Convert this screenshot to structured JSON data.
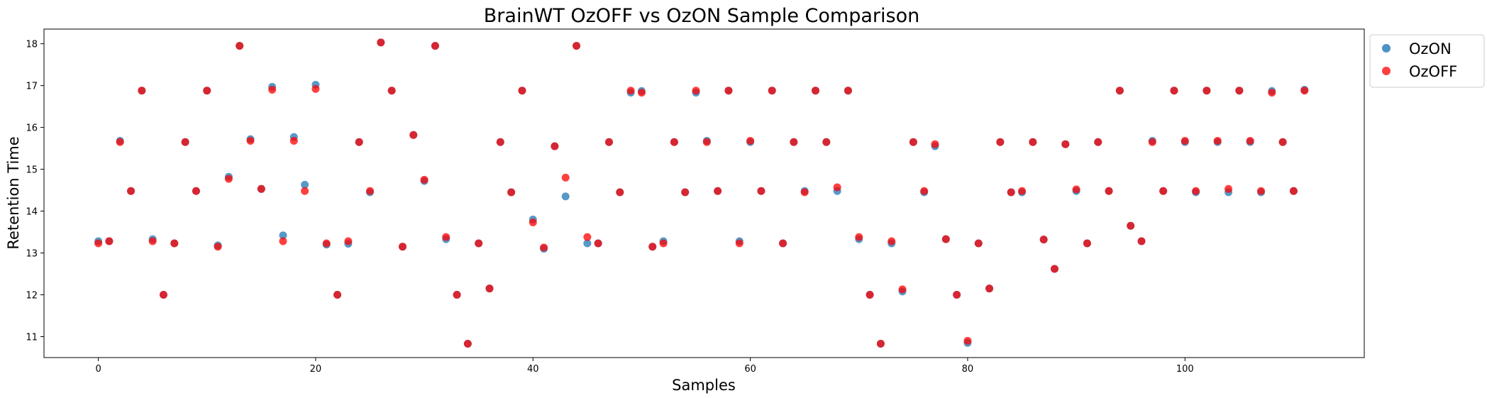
{
  "chart_data": {
    "type": "scatter",
    "title": "BrainWT OzOFF vs OzON Sample Comparison",
    "xlabel": "Samples",
    "ylabel": "Retention Time",
    "xlim": [
      -5,
      116.5
    ],
    "ylim": [
      10.5,
      18.35
    ],
    "xticks": [
      0,
      20,
      40,
      60,
      80,
      100
    ],
    "yticks": [
      11,
      12,
      13,
      14,
      15,
      16,
      17,
      18
    ],
    "legend_position": "outside-top-right",
    "grid": false,
    "series": [
      {
        "name": "OzON",
        "color": "#1f77b4",
        "x": [
          0,
          1,
          2,
          3,
          4,
          5,
          6,
          7,
          8,
          9,
          10,
          11,
          12,
          13,
          14,
          15,
          16,
          17,
          18,
          19,
          20,
          21,
          22,
          23,
          24,
          25,
          26,
          27,
          28,
          29,
          30,
          31,
          32,
          33,
          34,
          35,
          36,
          37,
          38,
          39,
          40,
          41,
          42,
          43,
          44,
          45,
          46,
          47,
          48,
          49,
          50,
          51,
          52,
          53,
          54,
          55,
          56,
          57,
          58,
          59,
          60,
          61,
          62,
          63,
          64,
          65,
          66,
          67,
          68,
          69,
          70,
          71,
          72,
          73,
          74,
          75,
          76,
          77,
          78,
          79,
          80,
          81,
          82,
          83,
          84,
          85,
          86,
          87,
          88,
          89,
          90,
          91,
          92,
          93,
          94,
          95,
          96,
          97,
          98,
          99,
          100,
          101,
          102,
          103,
          104,
          105,
          106,
          107,
          108,
          109,
          110,
          111
        ],
        "y": [
          13.28,
          13.28,
          15.68,
          14.48,
          16.88,
          13.33,
          12.0,
          13.23,
          15.65,
          14.48,
          16.88,
          13.18,
          14.82,
          17.95,
          15.72,
          14.53,
          16.97,
          13.42,
          15.77,
          14.63,
          17.02,
          13.2,
          12.0,
          13.22,
          15.65,
          14.45,
          18.03,
          16.88,
          13.15,
          15.82,
          14.72,
          17.95,
          13.33,
          12.0,
          10.83,
          13.23,
          12.15,
          15.65,
          14.45,
          16.88,
          13.8,
          13.1,
          15.55,
          14.35,
          17.95,
          13.23,
          13.23,
          15.65,
          14.45,
          16.83,
          16.87,
          13.15,
          13.28,
          15.65,
          14.45,
          16.83,
          15.68,
          14.48,
          16.88,
          13.28,
          15.65,
          14.48,
          16.88,
          13.23,
          15.65,
          14.48,
          16.88,
          15.65,
          14.48,
          16.88,
          13.33,
          12.0,
          10.83,
          13.23,
          12.08,
          15.65,
          14.45,
          15.55,
          13.33,
          12.0,
          10.85,
          13.23,
          12.15,
          15.65,
          14.45,
          14.45,
          15.65,
          13.32,
          12.62,
          15.6,
          14.48,
          13.23,
          15.65,
          14.48,
          16.88,
          13.65,
          13.28,
          15.68,
          14.48,
          16.88,
          15.65,
          14.45,
          16.88,
          15.65,
          14.45,
          16.88,
          15.65,
          14.45,
          16.87,
          15.65,
          14.48,
          16.9
        ]
      },
      {
        "name": "OzOFF",
        "color": "#ff0000",
        "x": [
          0,
          1,
          2,
          3,
          4,
          5,
          6,
          7,
          8,
          9,
          10,
          11,
          12,
          13,
          14,
          15,
          16,
          17,
          18,
          19,
          20,
          21,
          22,
          23,
          24,
          25,
          26,
          27,
          28,
          29,
          30,
          31,
          32,
          33,
          34,
          35,
          36,
          37,
          38,
          39,
          40,
          41,
          42,
          43,
          44,
          45,
          46,
          47,
          48,
          49,
          50,
          51,
          52,
          53,
          54,
          55,
          56,
          57,
          58,
          59,
          60,
          61,
          62,
          63,
          64,
          65,
          66,
          67,
          68,
          69,
          70,
          71,
          72,
          73,
          74,
          75,
          76,
          77,
          78,
          79,
          80,
          81,
          82,
          83,
          84,
          85,
          86,
          87,
          88,
          89,
          90,
          91,
          92,
          93,
          94,
          95,
          96,
          97,
          98,
          99,
          100,
          101,
          102,
          103,
          104,
          105,
          106,
          107,
          108,
          109,
          110,
          111
        ],
        "y": [
          13.23,
          13.28,
          15.65,
          14.48,
          16.88,
          13.28,
          12.0,
          13.23,
          15.65,
          14.48,
          16.88,
          13.15,
          14.77,
          17.95,
          15.68,
          14.53,
          16.9,
          13.28,
          15.68,
          14.48,
          16.92,
          13.23,
          12.0,
          13.28,
          15.65,
          14.48,
          18.03,
          16.88,
          13.15,
          15.82,
          14.75,
          17.95,
          13.38,
          12.0,
          10.83,
          13.23,
          12.15,
          15.65,
          14.45,
          16.88,
          13.73,
          13.13,
          15.55,
          14.8,
          17.95,
          13.38,
          13.23,
          15.65,
          14.45,
          16.88,
          16.83,
          13.15,
          13.23,
          15.65,
          14.45,
          16.88,
          15.65,
          14.48,
          16.88,
          13.23,
          15.68,
          14.48,
          16.88,
          13.23,
          15.65,
          14.45,
          16.88,
          15.65,
          14.57,
          16.88,
          13.38,
          12.0,
          10.83,
          13.28,
          12.13,
          15.65,
          14.48,
          15.6,
          13.33,
          12.0,
          10.9,
          13.23,
          12.15,
          15.65,
          14.45,
          14.48,
          15.65,
          13.32,
          12.62,
          15.6,
          14.52,
          13.23,
          15.65,
          14.48,
          16.88,
          13.65,
          13.28,
          15.65,
          14.48,
          16.88,
          15.68,
          14.48,
          16.88,
          15.68,
          14.53,
          16.88,
          15.68,
          14.48,
          16.83,
          15.65,
          14.48,
          16.88
        ]
      }
    ]
  }
}
